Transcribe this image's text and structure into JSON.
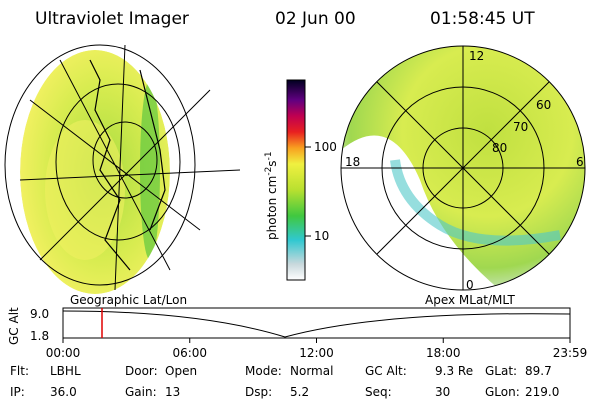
{
  "header": {
    "title": "Ultraviolet Imager",
    "date": "02 Jun 00",
    "time": "01:58:45 UT"
  },
  "colorbar": {
    "unit_base": "photon cm",
    "unit_exp1": "-2",
    "unit_mid": "s",
    "unit_exp2": "-1",
    "tick_high": "100",
    "tick_low": "10"
  },
  "polar_plot": {
    "mlt_top": "12",
    "mlt_left": "18",
    "mlt_right": "6",
    "mlt_bottom": "0",
    "lat_inner": "80",
    "lat_middle": "70",
    "lat_outer": "60"
  },
  "orbit_panel": {
    "left_label": "Geographic Lat/Lon",
    "right_label": "Apex MLat/MLT",
    "axis_label": "GC Alt",
    "y_top": "9.0",
    "y_bottom": "1.8",
    "time_ticks": [
      "00:00",
      "06:00",
      "12:00",
      "18:00",
      "23:59"
    ]
  },
  "info": [
    [
      {
        "label": "Flt:",
        "value": "LBHL"
      },
      {
        "label": "Door:",
        "value": "Open"
      },
      {
        "label": "Mode:",
        "value": "Normal"
      },
      {
        "label": "GC Alt:",
        "value": "9.3 Re"
      },
      {
        "label": "GLat:",
        "value": "89.7"
      }
    ],
    [
      {
        "label": "IP:",
        "value": "36.0"
      },
      {
        "label": "Gain:",
        "value": "13"
      },
      {
        "label": "Dsp:",
        "value": "5.2"
      },
      {
        "label": "Seq:",
        "value": "30"
      },
      {
        "label": "GLon:",
        "value": "219.0"
      }
    ]
  ]
}
